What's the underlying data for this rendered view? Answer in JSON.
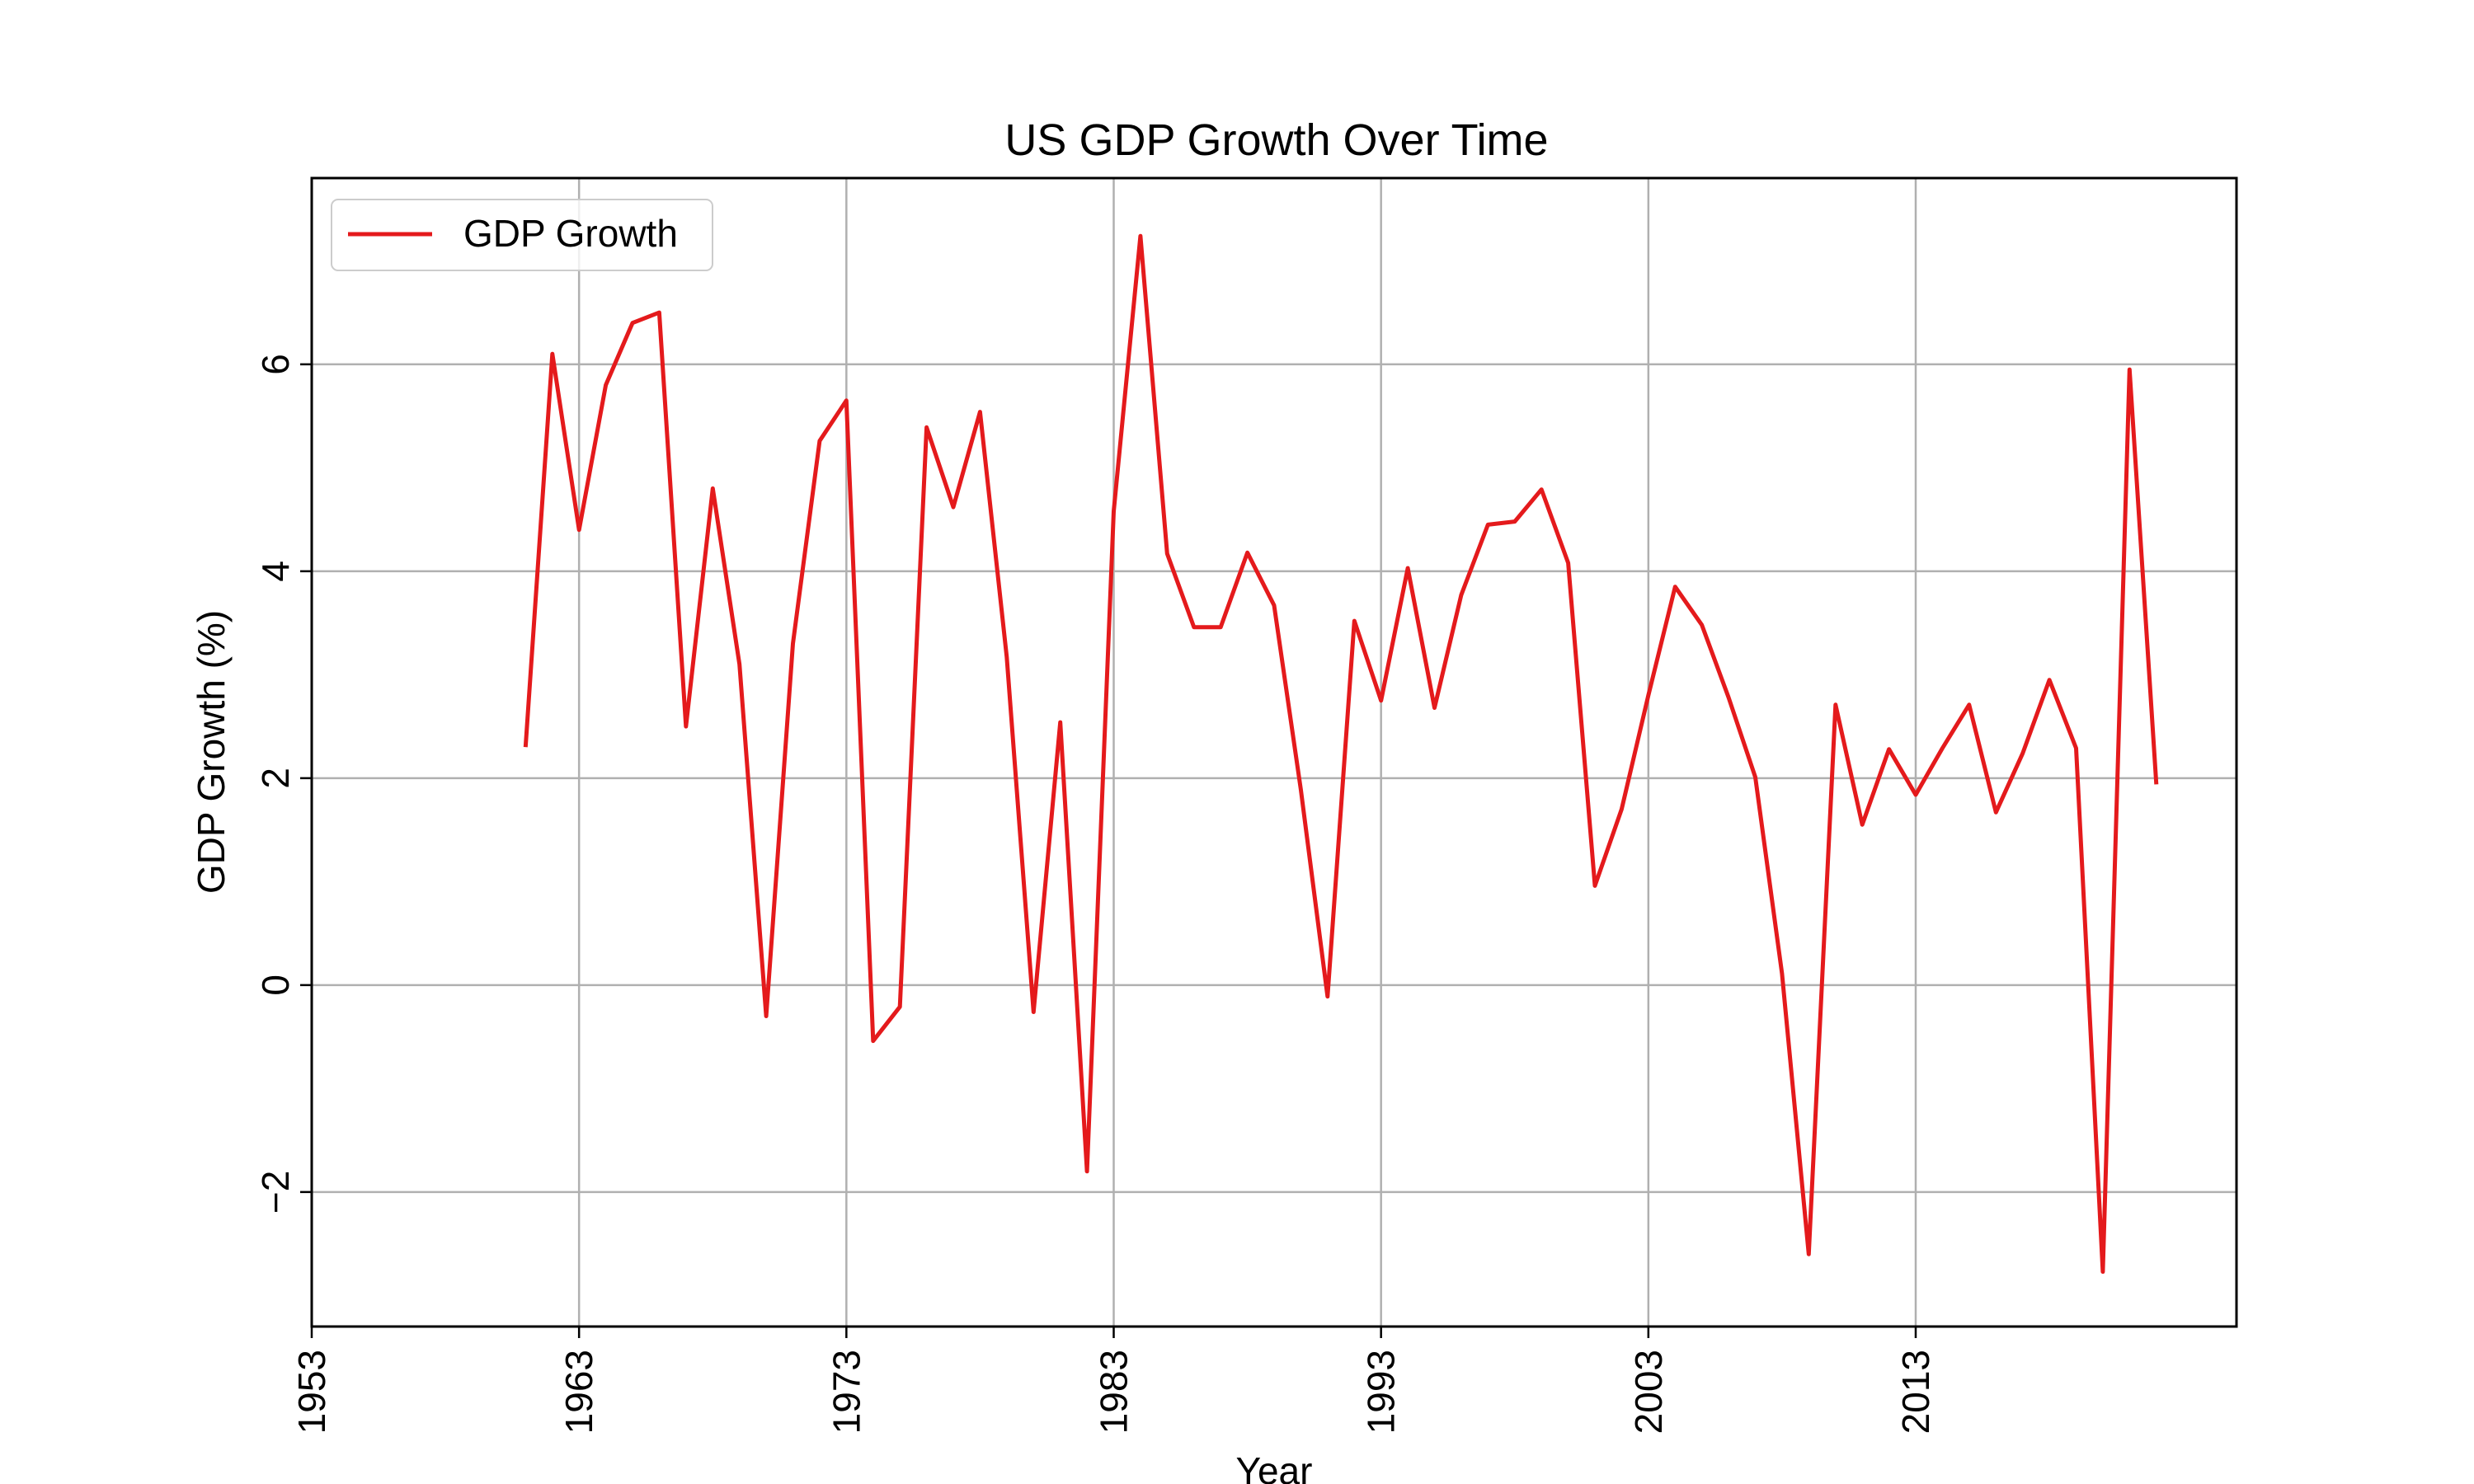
{
  "chart_data": {
    "type": "line",
    "title": "US GDP Growth Over Time",
    "xlabel": "Year",
    "ylabel": "GDP Growth (%)",
    "xlim": [
      1953,
      2025
    ],
    "ylim": [
      -3.3,
      7.8
    ],
    "xticks": [
      1953,
      1963,
      1973,
      1983,
      1993,
      2003,
      2013
    ],
    "xtick_labels": [
      "1953",
      "1963",
      "1973",
      "1983",
      "1993",
      "2003",
      "2013"
    ],
    "yticks": [
      -2,
      0,
      2,
      4,
      6
    ],
    "ytick_labels": [
      "−2",
      "0",
      "2",
      "4",
      "6"
    ],
    "grid": true,
    "legend_position": "upper-left",
    "series": [
      {
        "name": "GDP Growth",
        "color": "#e41a1c",
        "x": [
          1961,
          1962,
          1963,
          1964,
          1965,
          1966,
          1967,
          1968,
          1969,
          1970,
          1971,
          1972,
          1973,
          1974,
          1975,
          1976,
          1977,
          1978,
          1979,
          1980,
          1981,
          1982,
          1983,
          1984,
          1985,
          1986,
          1987,
          1988,
          1989,
          1990,
          1991,
          1992,
          1993,
          1994,
          1995,
          1996,
          1997,
          1998,
          1999,
          2000,
          2001,
          2002,
          2003,
          2004,
          2005,
          2006,
          2007,
          2008,
          2009,
          2010,
          2011,
          2012,
          2013,
          2014,
          2015,
          2016,
          2017,
          2018,
          2019,
          2020,
          2021,
          2022
        ],
        "y": [
          2.3,
          6.1,
          4.4,
          5.8,
          6.4,
          6.5,
          2.5,
          4.8,
          3.1,
          -0.3,
          3.3,
          5.26,
          5.65,
          -0.54,
          -0.21,
          5.39,
          4.62,
          5.54,
          3.17,
          -0.26,
          2.54,
          -1.8,
          4.58,
          7.24,
          4.17,
          3.46,
          3.46,
          4.18,
          3.67,
          1.89,
          -0.11,
          3.52,
          2.75,
          4.03,
          2.68,
          3.77,
          4.45,
          4.48,
          4.79,
          4.08,
          0.96,
          1.7,
          2.8,
          3.85,
          3.48,
          2.78,
          2.01,
          0.11,
          -2.6,
          2.71,
          1.55,
          2.28,
          1.84,
          2.29,
          2.71,
          1.67,
          2.24,
          2.95,
          2.29,
          -2.77,
          5.95,
          1.94
        ]
      }
    ]
  }
}
